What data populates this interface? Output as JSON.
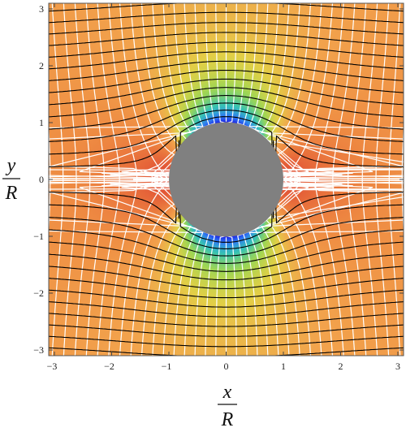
{
  "chart_data": {
    "type": "heatmap",
    "title": "",
    "xlabel": {
      "numerator": "x",
      "denominator": "R"
    },
    "ylabel": {
      "numerator": "y",
      "denominator": "R"
    },
    "xlim": [
      -3.1,
      3.1
    ],
    "ylim": [
      -3.1,
      3.1
    ],
    "x_ticks": [
      -3,
      -2,
      -1,
      0,
      1,
      2,
      3
    ],
    "y_ticks": [
      -3,
      -2,
      -1,
      0,
      1,
      2,
      3
    ],
    "x_tick_labels": [
      "−3",
      "−2",
      "−1",
      "0",
      "1",
      "2",
      "3"
    ],
    "y_tick_labels": [
      "−3",
      "−2",
      "−1",
      "0",
      "1",
      "2",
      "3"
    ],
    "cylinder_radius": 1,
    "cylinder_center": [
      0,
      0
    ],
    "streamline_count": 33,
    "potential_line_count": 37,
    "grid": false,
    "colors": {
      "cylinder": "#808080",
      "streamlines": "#000000",
      "potential_lines": "#ffffff",
      "scale": [
        "#1a1ae6",
        "#2f7ff0",
        "#37c3b4",
        "#9ed654",
        "#e3cf46",
        "#f2a34c",
        "#ee8a42",
        "#e04a33"
      ]
    }
  }
}
